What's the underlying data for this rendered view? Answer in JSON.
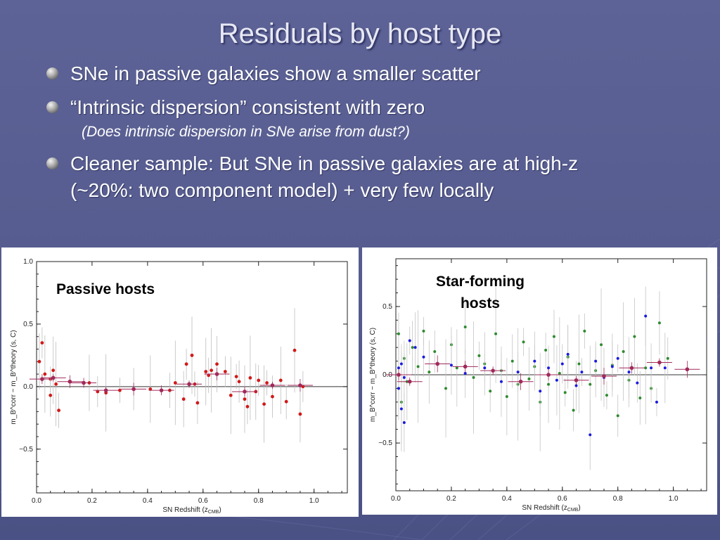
{
  "slide": {
    "title": "Residuals by host type",
    "bullets": [
      "SNe in passive galaxies show a smaller scatter",
      "“Intrinsic dispersion” consistent with zero",
      "Cleaner sample: But SNe in passive galaxies are at high-z",
      "(~20%: two component model) + very few locally"
    ],
    "subnote": "(Does intrinsic dispersion in SNe arise from dust?)"
  },
  "colors": {
    "passive": "#d11919",
    "starforming_green": "#2f8a2f",
    "starforming_blue": "#1a1ae0",
    "binned": "#a0295a"
  },
  "chart_data": [
    {
      "type": "scatter",
      "label": "Passive hosts",
      "xlabel_prefix": "SN Redshift (z",
      "xlabel_sub": "CMB",
      "xlabel_suffix": ")",
      "ylabel": "m_B^corr − m_B^theory (s, C)",
      "xlim": [
        0.0,
        1.12
      ],
      "ylim": [
        -0.85,
        1.0
      ],
      "xticks": [
        "0.0",
        "0.2",
        "0.4",
        "0.6",
        "0.8",
        "1.0"
      ],
      "yticks": [
        "1.0",
        "0.5",
        "0.0",
        "−0.5"
      ],
      "series": [
        {
          "values": [
            [
              0.01,
              0.2
            ],
            [
              0.02,
              0.35
            ],
            [
              0.03,
              0.1
            ],
            [
              0.05,
              0.06
            ],
            [
              0.05,
              -0.07
            ],
            [
              0.06,
              0.13
            ],
            [
              0.08,
              -0.19
            ],
            [
              0.07,
              0.02
            ],
            [
              0.19,
              0.03
            ],
            [
              0.22,
              -0.04
            ],
            [
              0.25,
              -0.05
            ],
            [
              0.3,
              -0.03
            ],
            [
              0.35,
              -0.02
            ],
            [
              0.41,
              -0.02
            ],
            [
              0.48,
              -0.03
            ],
            [
              0.5,
              0.03
            ],
            [
              0.53,
              -0.1
            ],
            [
              0.54,
              0.18
            ],
            [
              0.56,
              0.25
            ],
            [
              0.57,
              0.02
            ],
            [
              0.58,
              -0.13
            ],
            [
              0.61,
              0.12
            ],
            [
              0.62,
              0.09
            ],
            [
              0.63,
              0.13
            ],
            [
              0.65,
              0.18
            ],
            [
              0.68,
              0.12
            ],
            [
              0.7,
              -0.07
            ],
            [
              0.72,
              0.08
            ],
            [
              0.73,
              0.04
            ],
            [
              0.75,
              -0.1
            ],
            [
              0.76,
              -0.16
            ],
            [
              0.77,
              0.07
            ],
            [
              0.79,
              -0.04
            ],
            [
              0.8,
              0.05
            ],
            [
              0.82,
              -0.14
            ],
            [
              0.83,
              0.03
            ],
            [
              0.85,
              -0.08
            ],
            [
              0.88,
              0.05
            ],
            [
              0.9,
              -0.12
            ],
            [
              0.93,
              0.29
            ],
            [
              0.95,
              -0.22
            ],
            [
              0.96,
              0.0
            ]
          ]
        },
        {
          "values": [
            [
              0.02,
              0.06
            ],
            [
              0.06,
              0.07
            ],
            [
              0.12,
              0.04
            ],
            [
              0.17,
              0.03
            ],
            [
              0.25,
              -0.03
            ],
            [
              0.35,
              -0.02
            ],
            [
              0.45,
              -0.03
            ],
            [
              0.55,
              0.02
            ],
            [
              0.65,
              0.1
            ],
            [
              0.75,
              -0.04
            ],
            [
              0.85,
              0.01
            ],
            [
              0.95,
              0.01
            ]
          ]
        }
      ]
    },
    {
      "type": "scatter",
      "label": "Star-forming hosts",
      "xlabel_prefix": "SN Redshift (z",
      "xlabel_sub": "CMB",
      "xlabel_suffix": ")",
      "ylabel": "m_B^corr − m_B^theory (s, C)",
      "xlim": [
        0.0,
        1.12
      ],
      "ylim": [
        -0.85,
        0.85
      ],
      "xticks": [
        "0.0",
        "0.2",
        "0.4",
        "0.6",
        "0.8",
        "1.0"
      ],
      "yticks": [
        "0.5",
        "0.0",
        "−0.5"
      ],
      "series": [
        {
          "values": [
            [
              0.01,
              -0.1
            ],
            [
              0.01,
              0.3
            ],
            [
              0.02,
              -0.2
            ],
            [
              0.03,
              0.12
            ],
            [
              0.04,
              -0.05
            ],
            [
              0.06,
              0.2
            ],
            [
              0.08,
              0.06
            ],
            [
              0.1,
              0.32
            ],
            [
              0.12,
              0.02
            ],
            [
              0.14,
              0.17
            ],
            [
              0.18,
              -0.1
            ],
            [
              0.2,
              0.22
            ],
            [
              0.22,
              0.05
            ],
            [
              0.25,
              0.35
            ],
            [
              0.28,
              -0.02
            ],
            [
              0.3,
              0.14
            ],
            [
              0.32,
              0.08
            ],
            [
              0.34,
              -0.12
            ],
            [
              0.36,
              0.3
            ],
            [
              0.38,
              0.03
            ],
            [
              0.4,
              -0.16
            ],
            [
              0.42,
              0.1
            ],
            [
              0.44,
              -0.07
            ],
            [
              0.46,
              0.24
            ],
            [
              0.48,
              -0.03
            ],
            [
              0.5,
              0.06
            ],
            [
              0.52,
              -0.2
            ],
            [
              0.54,
              0.18
            ],
            [
              0.55,
              -0.07
            ],
            [
              0.57,
              0.28
            ],
            [
              0.59,
              0.01
            ],
            [
              0.61,
              -0.13
            ],
            [
              0.62,
              0.13
            ],
            [
              0.64,
              -0.26
            ],
            [
              0.66,
              0.08
            ],
            [
              0.68,
              0.32
            ],
            [
              0.7,
              -0.07
            ],
            [
              0.72,
              0.03
            ],
            [
              0.74,
              0.22
            ],
            [
              0.76,
              -0.15
            ],
            [
              0.78,
              0.07
            ],
            [
              0.8,
              -0.3
            ],
            [
              0.82,
              0.17
            ],
            [
              0.84,
              -0.04
            ],
            [
              0.86,
              0.28
            ],
            [
              0.88,
              -0.17
            ],
            [
              0.9,
              0.05
            ],
            [
              0.92,
              -0.1
            ],
            [
              0.95,
              0.38
            ],
            [
              0.98,
              0.12
            ]
          ]
        },
        {
          "values": [
            [
              0.01,
              0.05
            ],
            [
              0.01,
              -0.1
            ],
            [
              0.02,
              -0.25
            ],
            [
              0.02,
              0.08
            ],
            [
              0.03,
              -0.35
            ],
            [
              0.03,
              -0.02
            ],
            [
              0.05,
              0.25
            ],
            [
              0.07,
              0.2
            ],
            [
              0.1,
              0.13
            ],
            [
              0.2,
              0.07
            ],
            [
              0.25,
              0.01
            ],
            [
              0.32,
              0.05
            ],
            [
              0.38,
              -0.05
            ],
            [
              0.44,
              0.02
            ],
            [
              0.5,
              0.1
            ],
            [
              0.52,
              -0.12
            ],
            [
              0.55,
              0.05
            ],
            [
              0.58,
              -0.04
            ],
            [
              0.6,
              0.08
            ],
            [
              0.62,
              0.15
            ],
            [
              0.65,
              -0.08
            ],
            [
              0.67,
              0.02
            ],
            [
              0.7,
              -0.44
            ],
            [
              0.72,
              0.1
            ],
            [
              0.75,
              -0.02
            ],
            [
              0.78,
              0.06
            ],
            [
              0.8,
              0.12
            ],
            [
              0.84,
              0.02
            ],
            [
              0.87,
              -0.06
            ],
            [
              0.9,
              0.43
            ],
            [
              0.92,
              0.05
            ],
            [
              0.94,
              -0.2
            ],
            [
              0.97,
              0.05
            ]
          ]
        },
        {
          "values": [
            [
              0.01,
              0.0
            ],
            [
              0.05,
              -0.05
            ],
            [
              0.15,
              0.08
            ],
            [
              0.25,
              0.06
            ],
            [
              0.35,
              0.03
            ],
            [
              0.45,
              -0.05
            ],
            [
              0.55,
              0.0
            ],
            [
              0.65,
              -0.04
            ],
            [
              0.75,
              -0.01
            ],
            [
              0.85,
              0.05
            ],
            [
              0.95,
              0.09
            ],
            [
              1.05,
              0.04
            ]
          ]
        }
      ]
    }
  ]
}
